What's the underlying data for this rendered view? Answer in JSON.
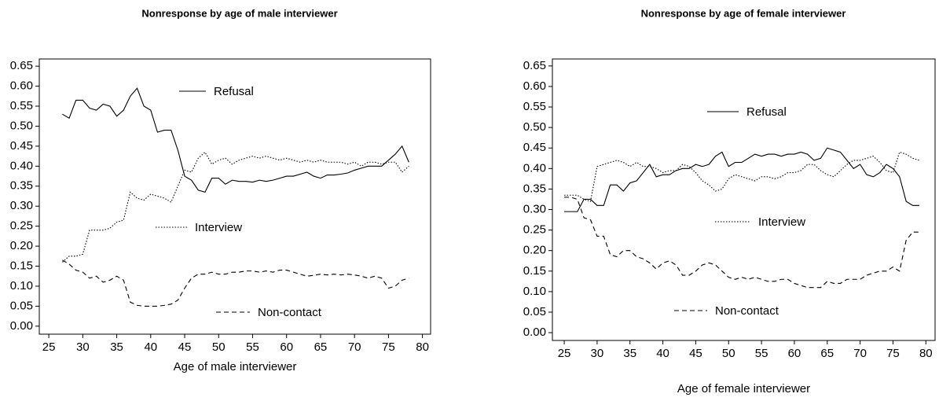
{
  "chart_data": [
    {
      "type": "line",
      "title": "Nonresponse by age of male interviewer",
      "xlabel": "Age of male interviewer",
      "x": [
        27,
        28,
        29,
        30,
        31,
        32,
        33,
        34,
        35,
        36,
        37,
        38,
        39,
        40,
        41,
        42,
        43,
        44,
        45,
        46,
        47,
        48,
        49,
        50,
        51,
        52,
        53,
        54,
        55,
        56,
        57,
        58,
        59,
        60,
        61,
        62,
        63,
        64,
        65,
        66,
        67,
        68,
        69,
        70,
        71,
        72,
        73,
        74,
        75,
        76,
        77,
        78
      ],
      "series": [
        {
          "name": "Refusal",
          "color": "#000000",
          "style": "solid",
          "values": [
            0.53,
            0.52,
            0.565,
            0.565,
            0.545,
            0.54,
            0.555,
            0.55,
            0.525,
            0.54,
            0.575,
            0.595,
            0.55,
            0.54,
            0.485,
            0.49,
            0.49,
            0.44,
            0.375,
            0.365,
            0.34,
            0.335,
            0.37,
            0.37,
            0.355,
            0.365,
            0.362,
            0.362,
            0.36,
            0.365,
            0.362,
            0.365,
            0.37,
            0.375,
            0.375,
            0.38,
            0.385,
            0.375,
            0.37,
            0.378,
            0.378,
            0.38,
            0.383,
            0.39,
            0.395,
            0.4,
            0.4,
            0.4,
            0.415,
            0.43,
            0.45,
            0.41
          ]
        },
        {
          "name": "Interview",
          "color": "#000000",
          "style": "dotted",
          "values": [
            0.16,
            0.175,
            0.175,
            0.18,
            0.24,
            0.24,
            0.24,
            0.245,
            0.26,
            0.265,
            0.335,
            0.32,
            0.315,
            0.33,
            0.325,
            0.32,
            0.31,
            0.35,
            0.39,
            0.385,
            0.42,
            0.435,
            0.405,
            0.415,
            0.42,
            0.405,
            0.415,
            0.42,
            0.425,
            0.42,
            0.425,
            0.42,
            0.415,
            0.42,
            0.415,
            0.41,
            0.415,
            0.41,
            0.415,
            0.41,
            0.41,
            0.41,
            0.405,
            0.41,
            0.4,
            0.41,
            0.41,
            0.405,
            0.41,
            0.41,
            0.385,
            0.4
          ]
        },
        {
          "name": "Non-contact",
          "color": "#000000",
          "style": "dashed",
          "values": [
            0.165,
            0.155,
            0.14,
            0.135,
            0.12,
            0.125,
            0.11,
            0.115,
            0.125,
            0.115,
            0.06,
            0.052,
            0.05,
            0.05,
            0.05,
            0.052,
            0.055,
            0.065,
            0.095,
            0.12,
            0.13,
            0.13,
            0.135,
            0.13,
            0.13,
            0.135,
            0.135,
            0.138,
            0.138,
            0.135,
            0.138,
            0.135,
            0.14,
            0.14,
            0.135,
            0.13,
            0.125,
            0.127,
            0.13,
            0.128,
            0.13,
            0.128,
            0.13,
            0.128,
            0.125,
            0.12,
            0.125,
            0.12,
            0.095,
            0.1,
            0.115,
            0.12
          ]
        }
      ],
      "xlim": [
        23.6,
        81.2
      ],
      "xticks": [
        25,
        30,
        35,
        40,
        45,
        50,
        55,
        60,
        65,
        70,
        75,
        80
      ],
      "ylim": [
        -0.02,
        0.668
      ],
      "yticks": [
        {
          "value": 0,
          "label": "0.00"
        },
        {
          "value": 0.05,
          "label": "0.05"
        },
        {
          "value": 0.1,
          "label": "0.10"
        },
        {
          "value": 0.15,
          "label": "0.15"
        },
        {
          "value": 0.2,
          "label": "0.20"
        },
        {
          "value": 0.25,
          "label": "0.25"
        },
        {
          "value": 0.3,
          "label": "0.30"
        },
        {
          "value": 0.35,
          "label": "0.35"
        },
        {
          "value": 0.4,
          "label": "0.40"
        },
        {
          "value": 0.45,
          "label": "0.45"
        },
        {
          "value": 0.5,
          "label": "0.50"
        },
        {
          "value": 0.55,
          "label": "0.55"
        },
        {
          "value": 0.6,
          "label": "0.60"
        },
        {
          "value": 0.65,
          "label": "0.65"
        }
      ],
      "grid": false
    },
    {
      "type": "line",
      "title": "Nonresponse by age of female interviewer",
      "xlabel": "Age of female interviewer",
      "x": [
        25,
        26,
        27,
        28,
        29,
        30,
        31,
        32,
        33,
        34,
        35,
        36,
        37,
        38,
        39,
        40,
        41,
        42,
        43,
        44,
        45,
        46,
        47,
        48,
        49,
        50,
        51,
        52,
        53,
        54,
        55,
        56,
        57,
        58,
        59,
        60,
        61,
        62,
        63,
        64,
        65,
        66,
        67,
        68,
        69,
        70,
        71,
        72,
        73,
        74,
        75,
        76,
        77,
        78,
        79
      ],
      "series": [
        {
          "name": "Refusal",
          "color": "#000000",
          "style": "solid",
          "values": [
            0.295,
            0.295,
            0.295,
            0.325,
            0.325,
            0.31,
            0.31,
            0.36,
            0.36,
            0.345,
            0.365,
            0.37,
            0.39,
            0.41,
            0.38,
            0.385,
            0.385,
            0.395,
            0.4,
            0.4,
            0.41,
            0.405,
            0.41,
            0.43,
            0.44,
            0.405,
            0.415,
            0.415,
            0.425,
            0.435,
            0.43,
            0.435,
            0.435,
            0.43,
            0.435,
            0.435,
            0.44,
            0.435,
            0.42,
            0.425,
            0.45,
            0.445,
            0.44,
            0.42,
            0.4,
            0.41,
            0.385,
            0.38,
            0.39,
            0.41,
            0.4,
            0.38,
            0.32,
            0.31,
            0.31
          ]
        },
        {
          "name": "Interview",
          "color": "#000000",
          "style": "dotted",
          "values": [
            0.335,
            0.335,
            0.335,
            0.325,
            0.32,
            0.405,
            0.41,
            0.415,
            0.42,
            0.415,
            0.405,
            0.415,
            0.405,
            0.405,
            0.4,
            0.39,
            0.395,
            0.395,
            0.41,
            0.405,
            0.39,
            0.37,
            0.36,
            0.345,
            0.35,
            0.375,
            0.385,
            0.38,
            0.375,
            0.37,
            0.38,
            0.38,
            0.375,
            0.38,
            0.39,
            0.39,
            0.395,
            0.41,
            0.41,
            0.395,
            0.385,
            0.38,
            0.395,
            0.41,
            0.42,
            0.42,
            0.425,
            0.43,
            0.415,
            0.395,
            0.39,
            0.44,
            0.435,
            0.425,
            0.42
          ]
        },
        {
          "name": "Non-contact",
          "color": "#000000",
          "style": "dashed",
          "values": [
            0.33,
            0.33,
            0.325,
            0.28,
            0.275,
            0.235,
            0.235,
            0.19,
            0.185,
            0.2,
            0.2,
            0.185,
            0.18,
            0.17,
            0.155,
            0.17,
            0.175,
            0.165,
            0.14,
            0.14,
            0.15,
            0.165,
            0.17,
            0.165,
            0.15,
            0.135,
            0.13,
            0.135,
            0.13,
            0.135,
            0.13,
            0.125,
            0.125,
            0.13,
            0.13,
            0.12,
            0.115,
            0.11,
            0.11,
            0.11,
            0.125,
            0.12,
            0.12,
            0.13,
            0.13,
            0.13,
            0.14,
            0.145,
            0.15,
            0.15,
            0.16,
            0.15,
            0.225,
            0.245,
            0.245
          ]
        }
      ],
      "xlim": [
        23.2,
        81.4
      ],
      "xticks": [
        25,
        30,
        35,
        40,
        45,
        50,
        55,
        60,
        65,
        70,
        75,
        80
      ],
      "ylim": [
        -0.019,
        0.667
      ],
      "yticks": [
        {
          "value": 0,
          "label": "0.00"
        },
        {
          "value": 0.05,
          "label": "0.05"
        },
        {
          "value": 0.1,
          "label": "0.10"
        },
        {
          "value": 0.15,
          "label": "0.15"
        },
        {
          "value": 0.2,
          "label": "0.20"
        },
        {
          "value": 0.25,
          "label": "0.25"
        },
        {
          "value": 0.3,
          "label": "0.30"
        },
        {
          "value": 0.35,
          "label": "0.35"
        },
        {
          "value": 0.4,
          "label": "0.40"
        },
        {
          "value": 0.45,
          "label": "0.45"
        },
        {
          "value": 0.5,
          "label": "0.50"
        },
        {
          "value": 0.55,
          "label": "0.55"
        },
        {
          "value": 0.6,
          "label": "0.60"
        },
        {
          "value": 0.65,
          "label": "0.65"
        }
      ],
      "grid": false
    }
  ]
}
